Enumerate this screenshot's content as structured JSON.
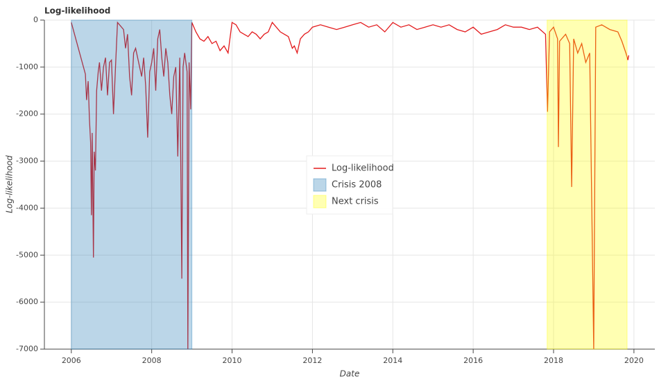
{
  "chart_data": {
    "type": "line",
    "title": "Log-likelihood",
    "x_label": "Date",
    "y_label": "Log-likelihood",
    "xlim": [
      2005.33,
      2020.52
    ],
    "xticks": [
      2006,
      2008,
      2010,
      2012,
      2014,
      2016,
      2018,
      2020
    ],
    "ylim": [
      -7000,
      0
    ],
    "yticks": [
      0,
      -1000,
      -2000,
      -3000,
      -4000,
      -5000,
      -6000,
      -7000
    ],
    "grid": true,
    "legend": "center",
    "x": [
      2006.0,
      2006.35,
      2006.38,
      2006.42,
      2006.45,
      2006.48,
      2006.5,
      2006.52,
      2006.55,
      2006.57,
      2006.6,
      2006.63,
      2006.67,
      2006.7,
      2006.75,
      2006.8,
      2006.85,
      2006.9,
      2006.95,
      2007.0,
      2007.05,
      2007.1,
      2007.15,
      2007.2,
      2007.3,
      2007.35,
      2007.4,
      2007.45,
      2007.5,
      2007.55,
      2007.6,
      2007.7,
      2007.75,
      2007.8,
      2007.85,
      2007.9,
      2007.95,
      2008.0,
      2008.05,
      2008.1,
      2008.15,
      2008.2,
      2008.25,
      2008.3,
      2008.35,
      2008.4,
      2008.45,
      2008.5,
      2008.55,
      2008.6,
      2008.65,
      2008.7,
      2008.75,
      2008.78,
      2008.82,
      2008.88,
      2008.9,
      2008.93,
      2008.97,
      2009.0,
      2009.1,
      2009.2,
      2009.3,
      2009.4,
      2009.5,
      2009.6,
      2009.7,
      2009.8,
      2009.9,
      2010.0,
      2010.1,
      2010.2,
      2010.3,
      2010.4,
      2010.5,
      2010.6,
      2010.7,
      2010.8,
      2010.9,
      2011.0,
      2011.1,
      2011.2,
      2011.3,
      2011.4,
      2011.5,
      2011.55,
      2011.62,
      2011.7,
      2011.8,
      2011.9,
      2012.0,
      2012.2,
      2012.4,
      2012.6,
      2012.8,
      2013.0,
      2013.2,
      2013.4,
      2013.6,
      2013.8,
      2014.0,
      2014.2,
      2014.4,
      2014.6,
      2014.8,
      2015.0,
      2015.2,
      2015.4,
      2015.6,
      2015.8,
      2016.0,
      2016.2,
      2016.4,
      2016.6,
      2016.8,
      2017.0,
      2017.2,
      2017.4,
      2017.6,
      2017.8,
      2017.85,
      2017.9,
      2018.0,
      2018.1,
      2018.12,
      2018.15,
      2018.3,
      2018.4,
      2018.45,
      2018.5,
      2018.6,
      2018.7,
      2018.8,
      2018.9,
      2019.0,
      2019.05,
      2019.2,
      2019.4,
      2019.6,
      2019.7,
      2019.8,
      2019.85,
      2019.87
    ],
    "series": [
      {
        "name": "Log-likelihood",
        "color": "#e31a1c",
        "values": [
          -50,
          -1150,
          -1700,
          -1300,
          -2100,
          -2600,
          -4150,
          -2400,
          -5050,
          -2800,
          -3200,
          -1500,
          -1100,
          -900,
          -1500,
          -1000,
          -800,
          -1600,
          -900,
          -850,
          -2000,
          -1000,
          -50,
          -100,
          -200,
          -600,
          -300,
          -1200,
          -1600,
          -700,
          -600,
          -1000,
          -1200,
          -800,
          -1400,
          -2500,
          -1100,
          -900,
          -600,
          -1500,
          -400,
          -200,
          -800,
          -1200,
          -600,
          -900,
          -1600,
          -2000,
          -1200,
          -1000,
          -2900,
          -800,
          -5500,
          -1000,
          -700,
          -1100,
          -7000,
          -900,
          -1900,
          -50,
          -250,
          -400,
          -450,
          -350,
          -500,
          -450,
          -650,
          -550,
          -700,
          -50,
          -100,
          -250,
          -300,
          -350,
          -250,
          -300,
          -400,
          -300,
          -250,
          -50,
          -150,
          -250,
          -300,
          -350,
          -600,
          -550,
          -700,
          -400,
          -300,
          -250,
          -150,
          -100,
          -150,
          -200,
          -150,
          -100,
          -50,
          -150,
          -100,
          -250,
          -50,
          -150,
          -100,
          -200,
          -150,
          -100,
          -150,
          -100,
          -200,
          -250,
          -150,
          -300,
          -250,
          -200,
          -100,
          -150,
          -150,
          -200,
          -150,
          -300,
          -1950,
          -250,
          -150,
          -400,
          -2700,
          -450,
          -300,
          -500,
          -3550,
          -400,
          -700,
          -500,
          -900,
          -700,
          -7000,
          -150,
          -100,
          -200,
          -250,
          -450,
          -700,
          -850,
          -750
        ]
      }
    ],
    "bands": [
      {
        "name": "Crisis 2008",
        "start": 2006.0,
        "end": 2009.0,
        "color": "#1f77b4"
      },
      {
        "name": "Next crisis",
        "start": 2017.84,
        "end": 2019.83,
        "color": "#ffff00"
      }
    ]
  }
}
